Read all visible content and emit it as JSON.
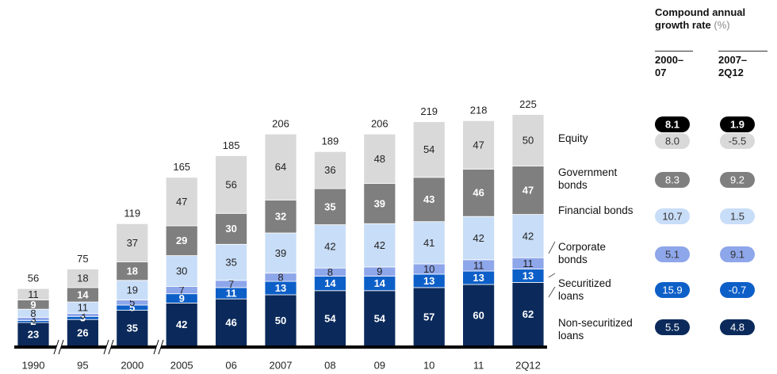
{
  "chart_data": {
    "type": "bar",
    "stacked": true,
    "categories": [
      "1990",
      "95",
      "2000",
      "2005",
      "06",
      "2007",
      "08",
      "09",
      "10",
      "11",
      "2Q12"
    ],
    "totals": [
      56,
      75,
      119,
      165,
      185,
      206,
      189,
      206,
      219,
      218,
      225
    ],
    "series": [
      {
        "name": "Non-securitized loans",
        "color": "#0b2a5b",
        "values": [
          23,
          26,
          35,
          42,
          46,
          50,
          54,
          54,
          57,
          60,
          62
        ]
      },
      {
        "name": "Securitized loans",
        "color": "#0d5fc8",
        "values": [
          2,
          3,
          5,
          9,
          11,
          13,
          14,
          14,
          13,
          13,
          13
        ]
      },
      {
        "name": "Corporate bonds",
        "color": "#8ea6ea",
        "values": [
          3,
          3,
          5,
          7,
          7,
          8,
          8,
          9,
          10,
          11,
          11
        ]
      },
      {
        "name": "Financial bonds",
        "color": "#c8ddf7",
        "values": [
          8,
          11,
          19,
          30,
          35,
          39,
          42,
          42,
          41,
          42,
          42
        ]
      },
      {
        "name": "Government bonds",
        "color": "#7f7f7f",
        "values": [
          9,
          14,
          18,
          29,
          30,
          32,
          35,
          39,
          43,
          46,
          47
        ]
      },
      {
        "name": "Equity",
        "color": "#d9d9d9",
        "values": [
          11,
          18,
          37,
          47,
          56,
          64,
          36,
          48,
          54,
          47,
          50
        ]
      }
    ],
    "cagr": {
      "title": "Compound annual growth rate",
      "unit": "(%)",
      "columns": [
        "2000–07",
        "2007–2Q12"
      ],
      "total": [
        8.1,
        1.9
      ],
      "rows": [
        [
          5.5,
          4.8
        ],
        [
          15.9,
          -0.7
        ],
        [
          5.1,
          9.1
        ],
        [
          10.7,
          1.5
        ],
        [
          8.3,
          9.2
        ],
        [
          8,
          -5.5
        ]
      ],
      "value_labels": [
        [
          "5.5",
          "4.8"
        ],
        [
          "15.9",
          "-0.7"
        ],
        [
          "5.1",
          "9.1"
        ],
        [
          "10.7",
          "1.5"
        ],
        [
          "8.3",
          "9.2"
        ],
        [
          "8.0",
          "-5.5"
        ]
      ]
    }
  }
}
